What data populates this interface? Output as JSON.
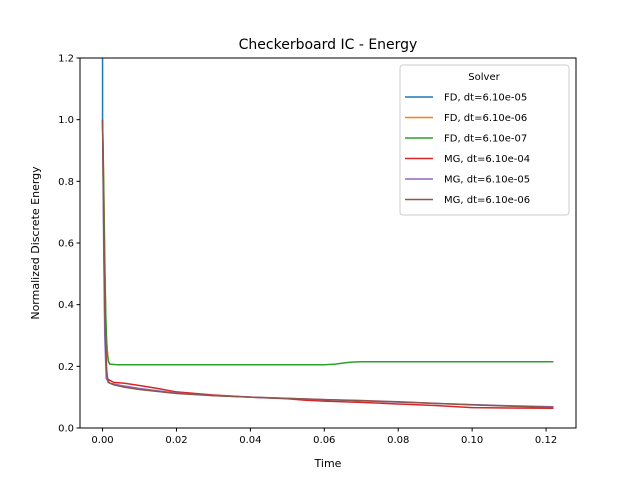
{
  "chart_data": {
    "type": "line",
    "title": "Checkerboard IC - Energy",
    "xlabel": "Time",
    "ylabel": "Normalized Discrete Energy",
    "xlim": [
      -0.0061,
      0.1281
    ],
    "ylim": [
      0.0,
      1.2
    ],
    "xticks": [
      0.0,
      0.02,
      0.04,
      0.06,
      0.08,
      0.1,
      0.12
    ],
    "xtick_labels": [
      "0.00",
      "0.02",
      "0.04",
      "0.06",
      "0.08",
      "0.10",
      "0.12"
    ],
    "yticks": [
      0.0,
      0.2,
      0.4,
      0.6,
      0.8,
      1.0,
      1.2
    ],
    "ytick_labels": [
      "0.0",
      "0.2",
      "0.4",
      "0.6",
      "0.8",
      "1.0",
      "1.2"
    ],
    "grid": false,
    "legend": {
      "title": "Solver",
      "placement": "upper right"
    },
    "series": [
      {
        "name": "FD, dt=6.10e-05",
        "color": "#1f77b4",
        "x": [
          0.0,
          0.0,
          0.0
        ],
        "y": [
          1.0,
          1.1,
          1.21
        ]
      },
      {
        "name": "FD, dt=6.10e-06",
        "color": "#ff7f0e",
        "x": [
          0.0,
          0.0003,
          0.0006,
          0.001,
          0.0015,
          0.002
        ],
        "y": [
          1.0,
          0.8,
          0.5,
          0.3,
          0.22,
          0.205
        ]
      },
      {
        "name": "FD, dt=6.10e-07",
        "color": "#2ca02c",
        "x": [
          0.0,
          0.0003,
          0.0006,
          0.0009,
          0.0012,
          0.0016,
          0.002,
          0.004,
          0.01,
          0.03,
          0.05,
          0.06,
          0.063,
          0.066,
          0.068,
          0.07,
          0.08,
          0.1,
          0.122
        ],
        "y": [
          1.0,
          0.8,
          0.55,
          0.35,
          0.25,
          0.215,
          0.207,
          0.205,
          0.205,
          0.205,
          0.205,
          0.205,
          0.207,
          0.212,
          0.214,
          0.215,
          0.215,
          0.215,
          0.215
        ]
      },
      {
        "name": "MG, dt=6.10e-04",
        "color": "#d62728",
        "x": [
          0.0,
          0.0006,
          0.0012,
          0.003,
          0.006,
          0.01,
          0.015,
          0.02,
          0.03,
          0.04,
          0.05,
          0.055,
          0.06,
          0.07,
          0.08,
          0.09,
          0.1,
          0.11,
          0.122
        ],
        "y": [
          1.0,
          0.35,
          0.16,
          0.148,
          0.145,
          0.138,
          0.128,
          0.117,
          0.107,
          0.1,
          0.095,
          0.09,
          0.087,
          0.083,
          0.078,
          0.073,
          0.066,
          0.065,
          0.064
        ]
      },
      {
        "name": "MG, dt=6.10e-05",
        "color": "#9467bd",
        "x": [
          0.0,
          0.0003,
          0.0006,
          0.001,
          0.002,
          0.005,
          0.01,
          0.02,
          0.03,
          0.04,
          0.05,
          0.06,
          0.07,
          0.08,
          0.09,
          0.1,
          0.11,
          0.122
        ],
        "y": [
          1.0,
          0.6,
          0.3,
          0.16,
          0.145,
          0.138,
          0.128,
          0.113,
          0.105,
          0.1,
          0.096,
          0.092,
          0.088,
          0.084,
          0.08,
          0.076,
          0.072,
          0.069
        ]
      },
      {
        "name": "MG, dt=6.10e-06",
        "color": "#8c564b",
        "x": [
          0.0,
          0.0003,
          0.0006,
          0.001,
          0.0015,
          0.003,
          0.006,
          0.01,
          0.02,
          0.03,
          0.04,
          0.05,
          0.06,
          0.07,
          0.08,
          0.09,
          0.1,
          0.11,
          0.122
        ],
        "y": [
          1.0,
          0.7,
          0.4,
          0.2,
          0.148,
          0.14,
          0.132,
          0.125,
          0.112,
          0.105,
          0.1,
          0.096,
          0.092,
          0.089,
          0.085,
          0.08,
          0.075,
          0.071,
          0.067
        ]
      }
    ]
  }
}
